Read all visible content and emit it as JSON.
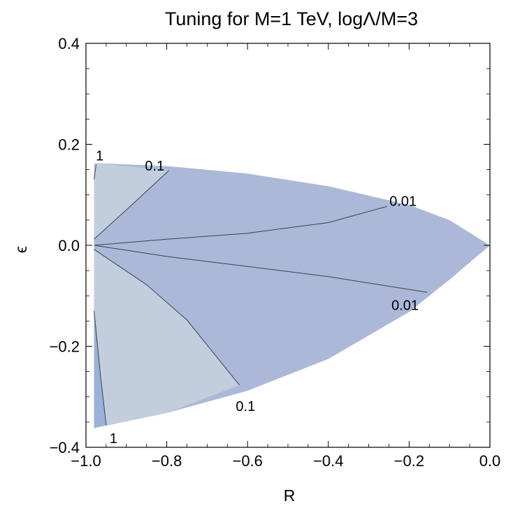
{
  "chart_data": {
    "type": "contour",
    "title": "Tuning for M=1 TeV, logΛ/M=3",
    "xlabel": "R",
    "ylabel": "ϵ",
    "xlim": [
      -1.0,
      0.0
    ],
    "ylim": [
      -0.4,
      0.4
    ],
    "xticks": [
      -1.0,
      -0.8,
      -0.6,
      -0.4,
      -0.2,
      0.0
    ],
    "xtick_labels": [
      "−1.0",
      "−0.8",
      "−0.6",
      "−0.4",
      "−0.2",
      "0.0"
    ],
    "yticks": [
      -0.4,
      -0.2,
      0.0,
      0.2,
      0.4
    ],
    "ytick_labels": [
      "−0.4",
      "−0.2",
      "0.0",
      "0.2",
      "0.4"
    ],
    "grid": false,
    "colors": {
      "region_lightest": "#c2cede",
      "region_mid": "#abb8d8",
      "region_dark": "#98b2d8",
      "contour_line": "#3c4250",
      "frame": "#000000"
    },
    "regions": [
      {
        "level_band": "below 0.1",
        "color_key": "region_mid",
        "boundary": [
          [
            -0.98,
            0.163
          ],
          [
            -0.8,
            0.157
          ],
          [
            -0.6,
            0.142
          ],
          [
            -0.4,
            0.117
          ],
          [
            -0.2,
            0.08
          ],
          [
            -0.1,
            0.05
          ],
          [
            0.0,
            0.0
          ],
          [
            -0.1,
            -0.068
          ],
          [
            -0.2,
            -0.132
          ],
          [
            -0.4,
            -0.225
          ],
          [
            -0.6,
            -0.288
          ],
          [
            -0.8,
            -0.332
          ],
          [
            -0.98,
            -0.362
          ]
        ]
      },
      {
        "level_band": "0.1 to 1 (upper)",
        "color_key": "region_lightest",
        "boundary": [
          [
            -0.98,
            0.163
          ],
          [
            -0.795,
            0.148
          ],
          [
            -0.88,
            0.085
          ],
          [
            -0.98,
            0.012
          ]
        ]
      },
      {
        "level_band": "0.1 to 1 (lower)",
        "color_key": "region_lightest",
        "boundary": [
          [
            -0.98,
            -0.008
          ],
          [
            -0.85,
            -0.078
          ],
          [
            -0.75,
            -0.148
          ],
          [
            -0.62,
            -0.277
          ],
          [
            -0.8,
            -0.332
          ],
          [
            -0.95,
            -0.356
          ],
          [
            -0.98,
            -0.362
          ]
        ]
      },
      {
        "level_band": "above 1",
        "color_key": "region_dark",
        "boundary": [
          [
            -0.98,
            -0.13
          ],
          [
            -0.965,
            -0.25
          ],
          [
            -0.95,
            -0.356
          ],
          [
            -0.98,
            -0.362
          ]
        ]
      }
    ],
    "contours": [
      {
        "level_label": "1",
        "points": [
          [
            -0.98,
            0.13
          ],
          [
            -0.975,
            0.16
          ]
        ],
        "label_at": [
          -0.966,
          0.178
        ]
      },
      {
        "level_label": "0.1",
        "points": [
          [
            -0.98,
            0.012
          ],
          [
            -0.88,
            0.085
          ],
          [
            -0.795,
            0.148
          ]
        ],
        "label_at": [
          -0.83,
          0.158
        ]
      },
      {
        "level_label": "0.01",
        "points": [
          [
            -0.98,
            0.0
          ],
          [
            -0.8,
            0.012
          ],
          [
            -0.6,
            0.024
          ],
          [
            -0.4,
            0.045
          ],
          [
            -0.255,
            0.077
          ]
        ],
        "label_at": [
          -0.215,
          0.088
        ]
      },
      {
        "level_label": "0.01",
        "points": [
          [
            -0.98,
            0.0
          ],
          [
            -0.8,
            -0.022
          ],
          [
            -0.6,
            -0.042
          ],
          [
            -0.4,
            -0.062
          ],
          [
            -0.155,
            -0.093
          ]
        ],
        "label_at": [
          -0.21,
          -0.118
        ]
      },
      {
        "level_label": "0.1",
        "points": [
          [
            -0.98,
            -0.008
          ],
          [
            -0.85,
            -0.078
          ],
          [
            -0.75,
            -0.148
          ],
          [
            -0.62,
            -0.277
          ]
        ],
        "label_at": [
          -0.605,
          -0.318
        ]
      },
      {
        "level_label": "1",
        "points": [
          [
            -0.98,
            -0.13
          ],
          [
            -0.965,
            -0.25
          ],
          [
            -0.95,
            -0.356
          ]
        ],
        "label_at": [
          -0.932,
          -0.382
        ]
      }
    ]
  }
}
